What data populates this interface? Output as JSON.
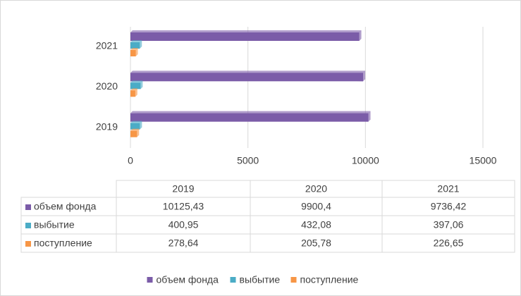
{
  "chart_data": {
    "type": "bar",
    "orientation": "horizontal",
    "categories": [
      "2019",
      "2020",
      "2021"
    ],
    "series": [
      {
        "name": "объем фонда",
        "color": "#7b5ca8",
        "values": [
          10125.43,
          9900.4,
          9736.42
        ],
        "value_labels": [
          "10125,43",
          "9900,4",
          "9736,42"
        ]
      },
      {
        "name": "выбытие",
        "color": "#4bacc6",
        "values": [
          400.95,
          432.08,
          397.06
        ],
        "value_labels": [
          "400,95",
          "432,08",
          "397,06"
        ]
      },
      {
        "name": "поступление",
        "color": "#f79646",
        "values": [
          278.64,
          205.78,
          226.65
        ],
        "value_labels": [
          "278,64",
          "205,78",
          "226,65"
        ]
      }
    ],
    "xlim": [
      0,
      15000
    ],
    "xticks": [
      0,
      5000,
      10000,
      15000
    ],
    "grid": true,
    "legend": "bottom"
  }
}
